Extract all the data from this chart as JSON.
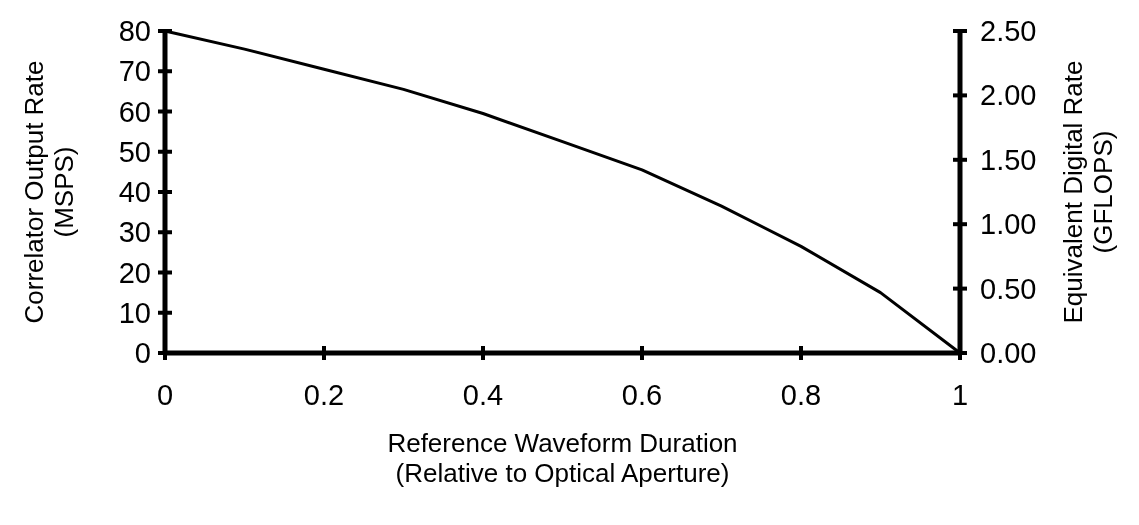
{
  "chart_data": {
    "type": "line",
    "xlabel": "Reference Waveform Duration\n(Relative to Optical Aperture)",
    "ylabel": "Correlator Output Rate\n(MSPS)",
    "y2label": "Equivalent Digital Rate\n(GFLOPS)",
    "x": [
      0,
      0.1,
      0.2,
      0.3,
      0.4,
      0.5,
      0.6,
      0.7,
      0.8,
      0.9,
      1
    ],
    "series": [
      {
        "color": "#000000",
        "values": [
          80,
          75.5,
          70.5,
          65.5,
          59.5,
          52.5,
          45.5,
          36.5,
          26.5,
          15,
          0
        ]
      }
    ],
    "xlim": [
      0,
      1
    ],
    "xticks": [
      0,
      0.2,
      0.4,
      0.6,
      0.8,
      1
    ],
    "ylim": [
      0,
      80
    ],
    "yticks": [
      0,
      10,
      20,
      30,
      40,
      50,
      60,
      70,
      80
    ],
    "y2lim": [
      0,
      2.5
    ],
    "y2ticks": [
      {
        "value": 0,
        "label": "0.00"
      },
      {
        "value": 0.5,
        "label": "0.50"
      },
      {
        "value": 1,
        "label": "1.00"
      },
      {
        "value": 1.5,
        "label": "1.50"
      },
      {
        "value": 2,
        "label": "2.00"
      },
      {
        "value": 2.5,
        "label": "2.50"
      }
    ],
    "grid": false,
    "marker": "none",
    "line_style": "solid"
  }
}
